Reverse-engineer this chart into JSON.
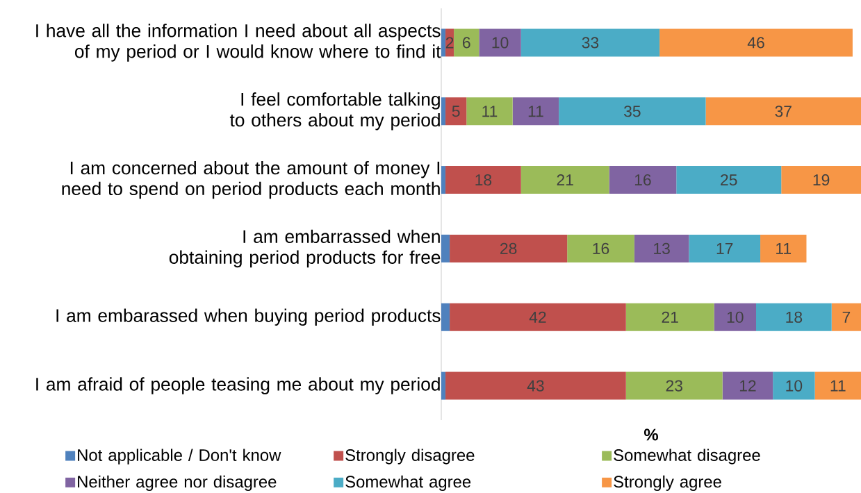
{
  "chart_data": {
    "type": "bar",
    "orientation": "horizontal",
    "stacked": true,
    "xlabel": "%",
    "tick_labels": "y",
    "legend": "bottom",
    "categories": [
      "I have all the information I need about all aspects of my period or I would know where to find it",
      "I feel comfortable talking to others about my period",
      "I am concerned about the amount of money I need to spend on period products each month",
      "I am embarrassed when obtaining period products for free",
      "I am embarassed when buying period products",
      "I am afraid of people teasing me about my period"
    ],
    "series": [
      {
        "name": "Not applicable / Don't know",
        "color": "#4f81bd",
        "values": [
          1,
          1,
          1,
          2,
          2,
          1
        ]
      },
      {
        "name": "Strongly disagree",
        "color": "#c0504d",
        "values": [
          2,
          5,
          18,
          28,
          42,
          43
        ],
        "value_labels": [
          "2",
          "5",
          "18",
          "28",
          "42",
          "43"
        ]
      },
      {
        "name": "Somewhat disagree",
        "color": "#9bbb59",
        "values": [
          6,
          11,
          21,
          16,
          21,
          23
        ],
        "value_labels": [
          "6",
          "11",
          "21",
          "16",
          "21",
          "23"
        ]
      },
      {
        "name": "Neither agree nor disagree",
        "color": "#8064a2",
        "values": [
          10,
          11,
          16,
          13,
          10,
          12
        ],
        "value_labels": [
          "10",
          "11",
          "16",
          "13",
          "10",
          "12"
        ]
      },
      {
        "name": "Somewhat agree",
        "color": "#4bacc6",
        "values": [
          33,
          35,
          25,
          17,
          18,
          10
        ],
        "value_labels": [
          "33",
          "35",
          "25",
          "17",
          "18",
          "10"
        ]
      },
      {
        "name": "Strongly agree",
        "color": "#f79646",
        "values": [
          46,
          37,
          19,
          11,
          7,
          11
        ],
        "value_labels": [
          "46",
          "37",
          "19",
          "11",
          "7",
          "11"
        ]
      }
    ]
  }
}
